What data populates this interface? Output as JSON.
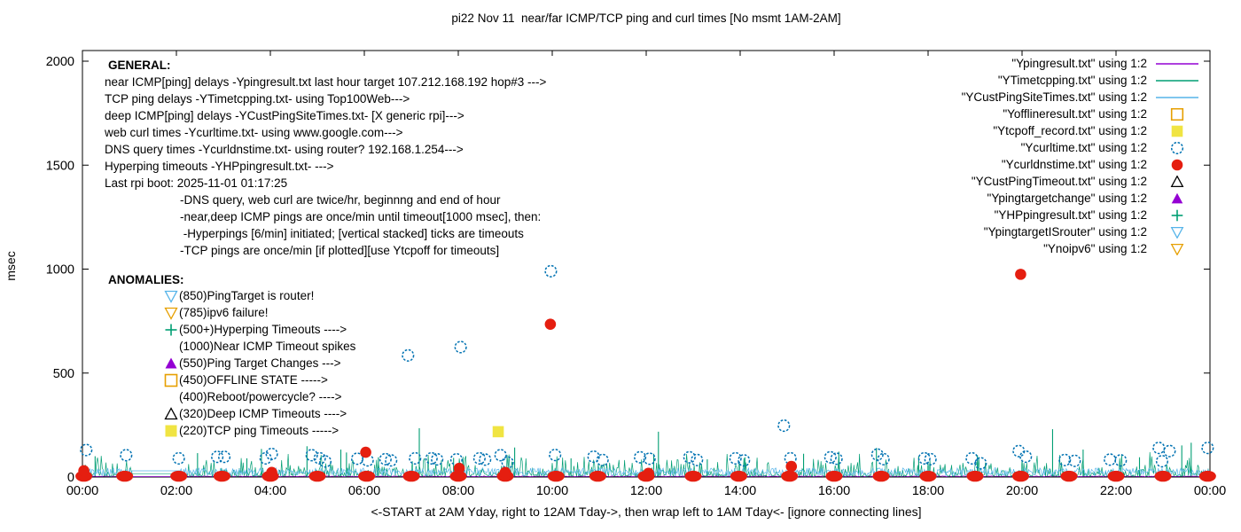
{
  "title": "pi22 Nov 11  near/far ICMP/TCP ping and curl times [No msmt 1AM-2AM]",
  "ylabel": "msec",
  "xlabel": "<-START at 2AM Yday, right to 12AM Tday->, then wrap left to 1AM Tday<- [ignore connecting lines]",
  "colors": {
    "purple": "#9400d3",
    "teal": "#009e73",
    "skyblue": "#56b4e9",
    "orange": "#e69f00",
    "yellow": "#f0e442",
    "blue": "#0072b2",
    "red": "#e51e10",
    "black": "#000000",
    "border": "#000000"
  },
  "axes": {
    "x_tick_labels": [
      "00:00",
      "02:00",
      "04:00",
      "06:00",
      "08:00",
      "10:00",
      "12:00",
      "14:00",
      "16:00",
      "18:00",
      "20:00",
      "22:00",
      "00:00"
    ],
    "x_tick_hours": [
      0,
      2,
      4,
      6,
      8,
      10,
      12,
      14,
      16,
      18,
      20,
      22,
      24
    ],
    "y_tick_labels": [
      "0",
      "500",
      "1000",
      "1500",
      "2000"
    ],
    "y_tick_values": [
      0,
      500,
      1000,
      1500,
      2000
    ],
    "x_range_hours": [
      0,
      24
    ],
    "y_range_msec": [
      0,
      2000
    ],
    "grid": false
  },
  "general": {
    "heading": "GENERAL:",
    "lines": [
      "near ICMP[ping] delays -Ypingresult.txt last hour target 107.212.168.192 hop#3 --->",
      "TCP ping delays -YTimetcpping.txt- using Top100Web--->",
      "deep ICMP[ping] delays -YCustPingSiteTimes.txt- [X generic rpi]--->",
      "web curl times -Ycurltime.txt- using www.google.com--->",
      "DNS query times -Ycurldnstime.txt- using router? 192.168.1.254--->",
      "Hyperping timeouts -YHPpingresult.txt- --->",
      "Last rpi boot: 2025-11-01 01:17:25"
    ],
    "indented_lines": [
      "-DNS query, web curl are twice/hr, beginnng and end of hour",
      "-near,deep ICMP pings are once/min until timeout[1000 msec], then:",
      " -Hyperpings [6/min] initiated; [vertical stacked] ticks are timeouts",
      "-TCP pings are once/min [if plotted][use Ytcpoff for timeouts]"
    ]
  },
  "anomalies": {
    "heading": "ANOMALIES:",
    "items": [
      {
        "icon": "open-triangle-down",
        "color": "#56b4e9",
        "text": "(850)PingTarget is router!"
      },
      {
        "icon": "open-triangle-down",
        "color": "#e69f00",
        "text": "(785)ipv6 failure!"
      },
      {
        "icon": "plus",
        "color": "#009e73",
        "text": "(500+)Hyperping Timeouts ---->"
      },
      {
        "icon": "none",
        "color": null,
        "text": "(1000)Near ICMP Timeout spikes"
      },
      {
        "icon": "filled-triangle-up",
        "color": "#9400d3",
        "text": "(550)Ping Target Changes --->"
      },
      {
        "icon": "open-square",
        "color": "#e69f00",
        "text": "(450)OFFLINE STATE ----->"
      },
      {
        "icon": "none",
        "color": null,
        "text": "(400)Reboot/powercycle? ---->"
      },
      {
        "icon": "open-triangle-up",
        "color": "#000000",
        "text": "(320)Deep ICMP Timeouts ---->"
      },
      {
        "icon": "filled-square",
        "color": "#f0e442",
        "text": "(220)TCP ping Timeouts ----->"
      }
    ]
  },
  "legend": [
    {
      "label": "\"Ypingresult.txt\" using 1:2",
      "marker": "line",
      "color": "#9400d3"
    },
    {
      "label": "\"YTimetcpping.txt\" using 1:2",
      "marker": "line",
      "color": "#009e73"
    },
    {
      "label": "\"YCustPingSiteTimes.txt\" using 1:2",
      "marker": "line",
      "color": "#56b4e9"
    },
    {
      "label": "\"Yofflineresult.txt\" using 1:2",
      "marker": "open-square",
      "color": "#e69f00"
    },
    {
      "label": "\"Ytcpoff_record.txt\" using 1:2",
      "marker": "filled-square",
      "color": "#f0e442"
    },
    {
      "label": "\"Ycurltime.txt\" using 1:2",
      "marker": "open-circle",
      "color": "#0072b2"
    },
    {
      "label": "\"Ycurldnstime.txt\" using 1:2",
      "marker": "filled-circle",
      "color": "#e51e10"
    },
    {
      "label": "\"YCustPingTimeout.txt\" using 1:2",
      "marker": "open-triangle-up",
      "color": "#000000"
    },
    {
      "label": "\"Ypingtargetchange\" using 1:2",
      "marker": "filled-triangle-up",
      "color": "#9400d3"
    },
    {
      "label": "\"YHPpingresult.txt\" using 1:2",
      "marker": "plus",
      "color": "#009e73"
    },
    {
      "label": "\"YpingtargetISrouter\" using 1:2",
      "marker": "open-triangle-down",
      "color": "#56b4e9"
    },
    {
      "label": "\"Ynoipv6\" using 1:2",
      "marker": "open-triangle-down",
      "color": "#e69f00"
    }
  ],
  "chart_data": {
    "type": "line",
    "x_unit": "hours (00:00-24:00)",
    "y_unit": "msec",
    "xlim": [
      0,
      24
    ],
    "ylim": [
      0,
      2000
    ],
    "note": "no measurements approx 01:00-02:00; flat connecting lines drawn across gap",
    "series": [
      {
        "name": "Ypingresult.txt",
        "style": "line",
        "color": "#9400d3",
        "base": 2,
        "noise_amp": 3,
        "noise_mode": "band",
        "seed": 11,
        "flat_segments": [
          {
            "from": 1.05,
            "to": 2.1,
            "value": 2
          }
        ],
        "spikes": []
      },
      {
        "name": "YTimetcpping.txt",
        "style": "line",
        "color": "#009e73",
        "base": 4,
        "noise_amp": 120,
        "noise_mode": "spiky",
        "seed": 23,
        "flat_segments": [
          {
            "from": 1.05,
            "to": 2.1,
            "value": 16
          }
        ],
        "spikes": [
          [
            0.27,
            100
          ],
          [
            2.45,
            115
          ],
          [
            3.5,
            90
          ],
          [
            3.81,
            135
          ],
          [
            4.78,
            148
          ],
          [
            5.5,
            132
          ],
          [
            5.62,
            118
          ],
          [
            6.3,
            95
          ],
          [
            7.17,
            235
          ],
          [
            7.9,
            92
          ],
          [
            9.2,
            142
          ],
          [
            10.4,
            90
          ],
          [
            12.16,
            112
          ],
          [
            12.26,
            218
          ],
          [
            13.3,
            85
          ],
          [
            14.1,
            95
          ],
          [
            15.35,
            112
          ],
          [
            16.1,
            122
          ],
          [
            16.9,
            140
          ],
          [
            17.8,
            100
          ],
          [
            19.05,
            105
          ],
          [
            20.65,
            230
          ],
          [
            21.3,
            132
          ],
          [
            22.5,
            95
          ],
          [
            23.4,
            152
          ],
          [
            23.6,
            165
          ]
        ]
      },
      {
        "name": "YCustPingSiteTimes.txt",
        "style": "line",
        "color": "#56b4e9",
        "base": 6,
        "noise_amp": 38,
        "noise_mode": "band",
        "seed": 5,
        "flat_segments": [
          {
            "from": 1.05,
            "to": 2.1,
            "value": 30
          }
        ],
        "spikes": []
      },
      {
        "name": "Yofflineresult.txt",
        "style": "points",
        "marker": "open-square",
        "color": "#e69f00",
        "points": []
      },
      {
        "name": "Ytcpoff_record.txt",
        "style": "points",
        "marker": "filled-square",
        "color": "#f0e442",
        "points": [
          [
            8.85,
            218
          ]
        ]
      },
      {
        "name": "Ycurltime.txt",
        "style": "points",
        "marker": "open-circle",
        "color": "#0072b2",
        "points": [
          [
            0.08,
            130
          ],
          [
            0.93,
            105
          ],
          [
            2.05,
            90
          ],
          [
            2.87,
            97
          ],
          [
            3.02,
            97
          ],
          [
            3.9,
            90
          ],
          [
            4.03,
            111
          ],
          [
            4.88,
            105
          ],
          [
            5.05,
            90
          ],
          [
            5.17,
            75
          ],
          [
            5.85,
            88
          ],
          [
            6.07,
            80
          ],
          [
            6.45,
            86
          ],
          [
            6.57,
            80
          ],
          [
            6.93,
            585
          ],
          [
            7.08,
            90
          ],
          [
            7.43,
            90
          ],
          [
            7.55,
            85
          ],
          [
            7.96,
            85
          ],
          [
            8.05,
            625
          ],
          [
            8.45,
            90
          ],
          [
            8.57,
            84
          ],
          [
            8.9,
            105
          ],
          [
            9.05,
            70
          ],
          [
            9.97,
            990
          ],
          [
            10.06,
            106
          ],
          [
            10.88,
            98
          ],
          [
            11.07,
            82
          ],
          [
            11.87,
            95
          ],
          [
            12.07,
            88
          ],
          [
            12.92,
            95
          ],
          [
            13.08,
            82
          ],
          [
            13.9,
            90
          ],
          [
            14.08,
            80
          ],
          [
            14.93,
            247
          ],
          [
            15.07,
            90
          ],
          [
            15.92,
            95
          ],
          [
            16.05,
            88
          ],
          [
            16.92,
            108
          ],
          [
            17.05,
            86
          ],
          [
            17.92,
            90
          ],
          [
            18.05,
            86
          ],
          [
            18.93,
            90
          ],
          [
            19.12,
            66
          ],
          [
            19.93,
            125
          ],
          [
            20.08,
            98
          ],
          [
            20.91,
            82
          ],
          [
            21.12,
            78
          ],
          [
            21.87,
            84
          ],
          [
            22.1,
            80
          ],
          [
            22.91,
            140
          ],
          [
            22.98,
            76
          ],
          [
            23.14,
            125
          ],
          [
            23.95,
            140
          ]
        ]
      },
      {
        "name": "Ycurldnstime.txt",
        "style": "points",
        "marker": "filled-circle",
        "color": "#e51e10",
        "points": [
          [
            0.03,
            30
          ],
          [
            4.03,
            22
          ],
          [
            6.03,
            119
          ],
          [
            8.02,
            42
          ],
          [
            9.0,
            22
          ],
          [
            9.96,
            735
          ],
          [
            12.05,
            18
          ],
          [
            15.09,
            51
          ],
          [
            19.97,
            975
          ]
        ],
        "baseline_cluster_hours": [
          0.03,
          0.9,
          2.05,
          2.97,
          4.0,
          5.0,
          6.05,
          7.0,
          8.0,
          9.0,
          10.08,
          10.97,
          12.0,
          13.0,
          13.97,
          15.05,
          16.0,
          17.0,
          18.0,
          19.0,
          19.97,
          21.0,
          22.0,
          23.0,
          23.95
        ],
        "baseline_value": 4
      },
      {
        "name": "YCustPingTimeout.txt",
        "style": "points",
        "marker": "open-triangle-up",
        "color": "#000000",
        "points": []
      },
      {
        "name": "Ypingtargetchange",
        "style": "points",
        "marker": "filled-triangle-up",
        "color": "#9400d3",
        "points": []
      },
      {
        "name": "YHPpingresult.txt",
        "style": "points",
        "marker": "plus",
        "color": "#009e73",
        "points": []
      },
      {
        "name": "YpingtargetISrouter",
        "style": "points",
        "marker": "open-triangle-down",
        "color": "#56b4e9",
        "points": []
      },
      {
        "name": "Ynoipv6",
        "style": "points",
        "marker": "open-triangle-down",
        "color": "#e69f00",
        "points": []
      }
    ]
  }
}
